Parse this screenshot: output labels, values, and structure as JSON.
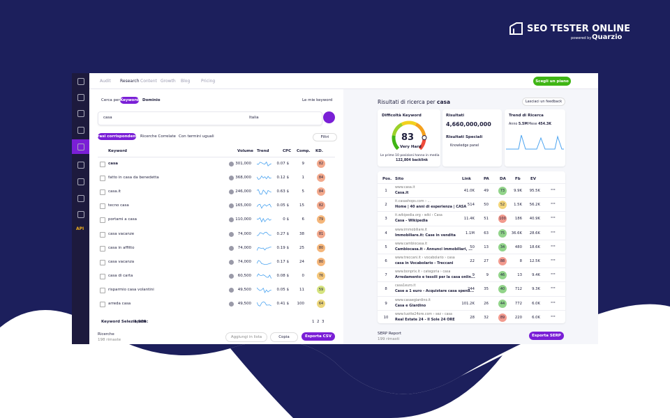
{
  "brand": {
    "name": "SEO TESTER ONLINE",
    "powered_by": "powered by",
    "partner": "Quarzio"
  },
  "nav": {
    "items": [
      "Audit",
      "Research",
      "Content",
      "Growth",
      "Blog",
      "Pricing"
    ],
    "active": 1,
    "cta": "Scegli un piano"
  },
  "sidebar": {
    "api": "API"
  },
  "keyword_panel": {
    "search_by": "Cerca per:",
    "search_options": [
      "Keyword",
      "Dominio"
    ],
    "my_keywords": "Le mie keyword",
    "query": "casa",
    "country": "Italia",
    "tabs": [
      "Frasi corrispondenti",
      "Ricerche Correlate",
      "Con termini uguali"
    ],
    "filter": "Filtri",
    "columns": [
      "Keyword",
      "Volume",
      "Trend",
      "CPC",
      "Comp.",
      "KD."
    ],
    "rows": [
      [
        "casa",
        "301,000",
        "0.07 $",
        "9",
        "82"
      ],
      [
        "fatto in casa da benedetta",
        "368,000",
        "0.12 $",
        "1",
        "84"
      ],
      [
        "casa.it",
        "246,000",
        "0.63 $",
        "5",
        "84"
      ],
      [
        "tecno casa",
        "165,000",
        "0.05 $",
        "15",
        "82"
      ],
      [
        "portami a casa",
        "110,000",
        "0 $",
        "6",
        "79"
      ],
      [
        "casa vacanze",
        "74,000",
        "0.27 $",
        "38",
        "81"
      ],
      [
        "casa in affitto",
        "74,000",
        "0.19 $",
        "25",
        "80"
      ],
      [
        "casa vacanza",
        "74,000",
        "0.17 $",
        "24",
        "80"
      ],
      [
        "casa di carta",
        "60,500",
        "0.08 $",
        "0",
        "76"
      ],
      [
        "risparmio casa volantini",
        "49,500",
        "0.05 $",
        "11",
        "59"
      ],
      [
        "arreda casa",
        "49,500",
        "0.41 $",
        "100",
        "64"
      ]
    ],
    "selected_label": "Keyword Selezionate:",
    "selected_count": "1,200",
    "pages": [
      "1",
      "2",
      "3"
    ],
    "searches_label": "Ricerche",
    "searches_left": "198 rimaste",
    "add_to_list": "Aggiungi in lista",
    "copy": "Copia",
    "export": "Esporta CSV"
  },
  "serp_panel": {
    "title": "Risultati di ricerca per",
    "query": "casa",
    "feedback": "Lasciaci un feedback",
    "difficulty": {
      "title": "Difficoltà Keyword",
      "score": 83,
      "level": "Very Hard",
      "note": "Le prime 10 posizioni hanno in media",
      "backlinks": "122,804 backlink"
    },
    "results": {
      "title": "Risultati",
      "count": "4,660,000,000",
      "special_title": "Risultati Speciali",
      "special": "Knowledge panel"
    },
    "trend": {
      "title": "Trend di Ricerca",
      "year_label": "Anno",
      "year": "5.5M",
      "month_label": "Mese",
      "month": "454.3K"
    },
    "columns": [
      "Pos.",
      "Sito",
      "Link",
      "PA",
      "DA",
      "Fb",
      "EV"
    ],
    "rows": [
      [
        "1",
        "www.casa.it",
        "Casa.it",
        "41.0K",
        "49",
        "73",
        "9.9K",
        "95.5K"
      ],
      [
        "2",
        "it.casashops.com › ...",
        "Home | 40 anni di esperienza | CASA",
        "514",
        "50",
        "52",
        "1.5K",
        "56.2K"
      ],
      [
        "3",
        "it.wikipedia.org › wiki › Casa",
        "Casa - Wikipedia",
        "11.4K",
        "51",
        "100",
        "186",
        "40.9K"
      ],
      [
        "4",
        "www.immobiliare.it",
        "Immobiliare.it: Case in vendita",
        "1.1M",
        "63",
        "75",
        "36.6K",
        "28.6K"
      ],
      [
        "5",
        "www.cambiocasa.it",
        "Cambiocasa.it - Annunci immobiliari, ...",
        "50",
        "13",
        "34",
        "480",
        "18.6K"
      ],
      [
        "6",
        "www.treccani.it › vocabolario › casa",
        "casa in Vocabolario - Treccani",
        "22",
        "27",
        "88",
        "8",
        "12.5K"
      ],
      [
        "7",
        "www.bonprix.it › categoria › casa",
        "Arredamento e tessili per la casa onlin...",
        "9",
        "9",
        "46",
        "13",
        "9.4K"
      ],
      [
        "8",
        "casa1euro.it",
        "Case a 1 euro - Acquistare casa spend...",
        "244",
        "35",
        "40",
        "712",
        "9.3K"
      ],
      [
        "9",
        "www.casaegiardino.it",
        "Casa e Giardino",
        "101.2K",
        "26",
        "44",
        "772",
        "6.0K"
      ],
      [
        "10",
        "www.tuotte24ore.com › sez › casa",
        "Real Estate 24 - Il Sole 24 ORE",
        "28",
        "32",
        "89",
        "220",
        "6.0K"
      ]
    ],
    "report_label": "SERP Report",
    "report_left": "199 rimasti",
    "export": "Esporta SERP"
  }
}
